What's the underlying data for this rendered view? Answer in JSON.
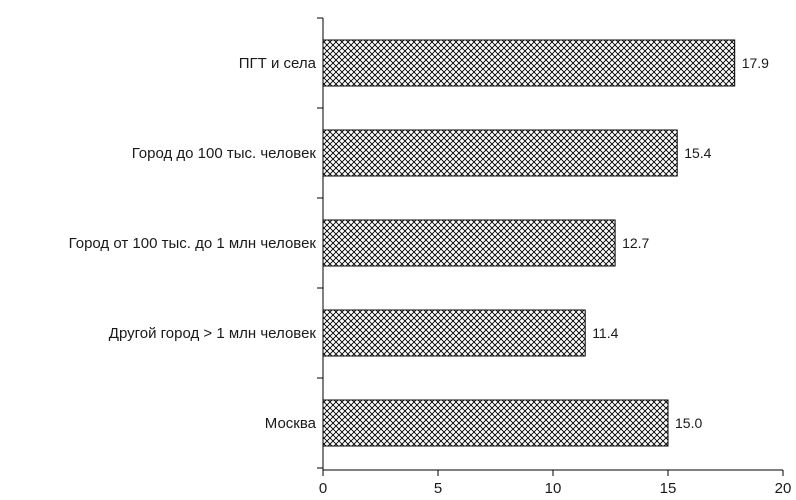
{
  "chart_data": {
    "type": "bar",
    "orientation": "horizontal",
    "categories": [
      "ПГТ и села",
      "Город до 100 тыс. человек",
      "Город от 100 тыс. до 1 млн человек",
      "Другой город  > 1 млн человек",
      "Москва"
    ],
    "values": [
      17.9,
      15.4,
      12.7,
      11.4,
      15.0
    ],
    "value_labels": [
      "17.9",
      "15.4",
      "12.7",
      "11.4",
      "15.0"
    ],
    "xlim": [
      0,
      20
    ],
    "xticks": [
      0,
      5,
      10,
      15,
      20
    ],
    "xtick_labels": [
      "0",
      "5",
      "10",
      "15",
      "20"
    ],
    "grid": false,
    "bar_fill": "crosshatch",
    "bar_stroke": "#000000"
  }
}
